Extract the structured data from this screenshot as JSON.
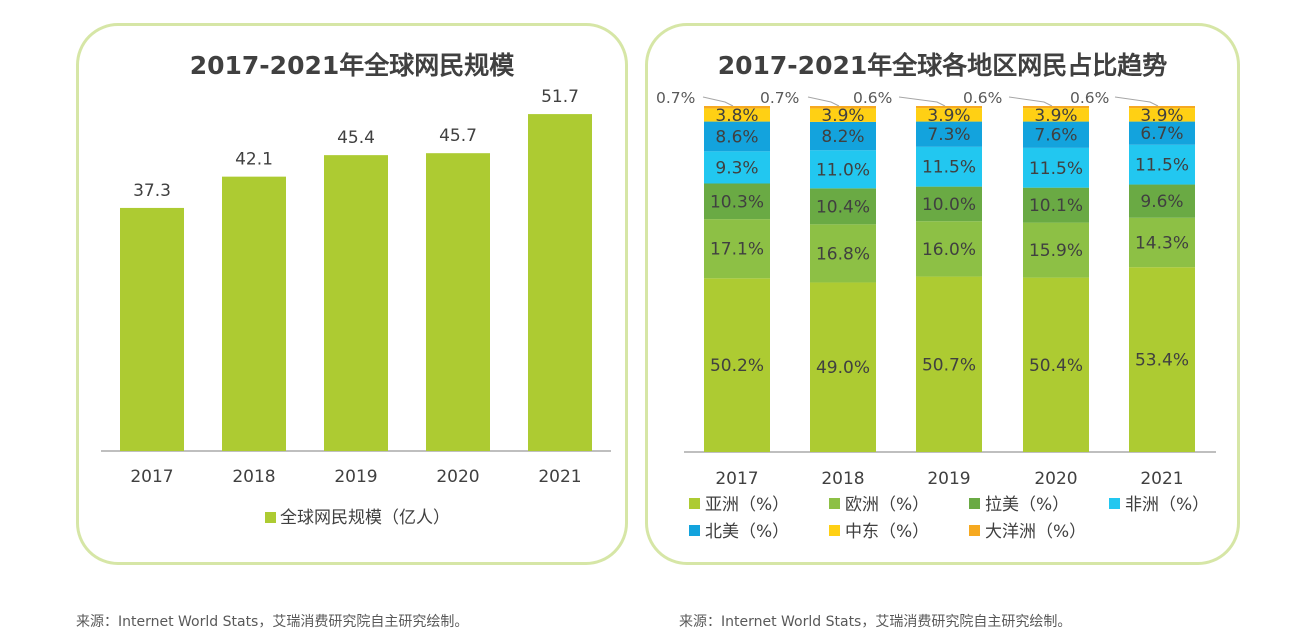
{
  "source_left": "来源：Internet World Stats，艾瑞消费研究院自主研究绘制。",
  "source_right": "来源：Internet World Stats，艾瑞消费研究院自主研究绘制。",
  "colors": {
    "bar": "#adcb32",
    "asia": "#adcb32",
    "europe": "#8dc045",
    "latin": "#6aaa44",
    "africa": "#22c7f0",
    "north_america": "#13a3dd",
    "middle_east": "#ffd014",
    "oceania": "#f6a920",
    "border": "#d6e6a6"
  },
  "chart_data": [
    {
      "type": "bar",
      "title": "2017-2021年全球网民规模",
      "categories": [
        "2017",
        "2018",
        "2019",
        "2020",
        "2021"
      ],
      "series": [
        {
          "name": "全球网民规模（亿人）",
          "values": [
            37.3,
            42.1,
            45.4,
            45.7,
            51.7
          ]
        }
      ],
      "data_labels": [
        "37.3",
        "42.1",
        "45.4",
        "45.7",
        "51.7"
      ],
      "ylim": [
        0,
        60
      ],
      "grid": false,
      "legend": "bottom"
    },
    {
      "type": "bar",
      "stacked": true,
      "title": "2017-2021年全球各地区网民占比趋势",
      "categories": [
        "2017",
        "2018",
        "2019",
        "2020",
        "2021"
      ],
      "series": [
        {
          "name": "亚洲（%）",
          "key": "asia",
          "values": [
            50.2,
            49.0,
            50.7,
            50.4,
            53.4
          ]
        },
        {
          "name": "欧洲（%）",
          "key": "europe",
          "values": [
            17.1,
            16.8,
            16.0,
            15.9,
            14.3
          ]
        },
        {
          "name": "拉美（%）",
          "key": "latin",
          "values": [
            10.3,
            10.4,
            10.0,
            10.1,
            9.6
          ]
        },
        {
          "name": "非洲（%）",
          "key": "africa",
          "values": [
            9.3,
            11.0,
            11.5,
            11.5,
            11.5
          ]
        },
        {
          "name": "北美（%）",
          "key": "north_america",
          "values": [
            8.6,
            8.2,
            7.3,
            7.6,
            6.7
          ]
        },
        {
          "name": "中东（%）",
          "key": "middle_east",
          "values": [
            3.8,
            3.9,
            3.9,
            3.9,
            3.9
          ]
        },
        {
          "name": "大洋洲（%）",
          "key": "oceania",
          "values": [
            0.7,
            0.7,
            0.6,
            0.6,
            0.6
          ]
        }
      ],
      "ylim": [
        0,
        100
      ],
      "grid": false,
      "legend": "bottom"
    }
  ]
}
